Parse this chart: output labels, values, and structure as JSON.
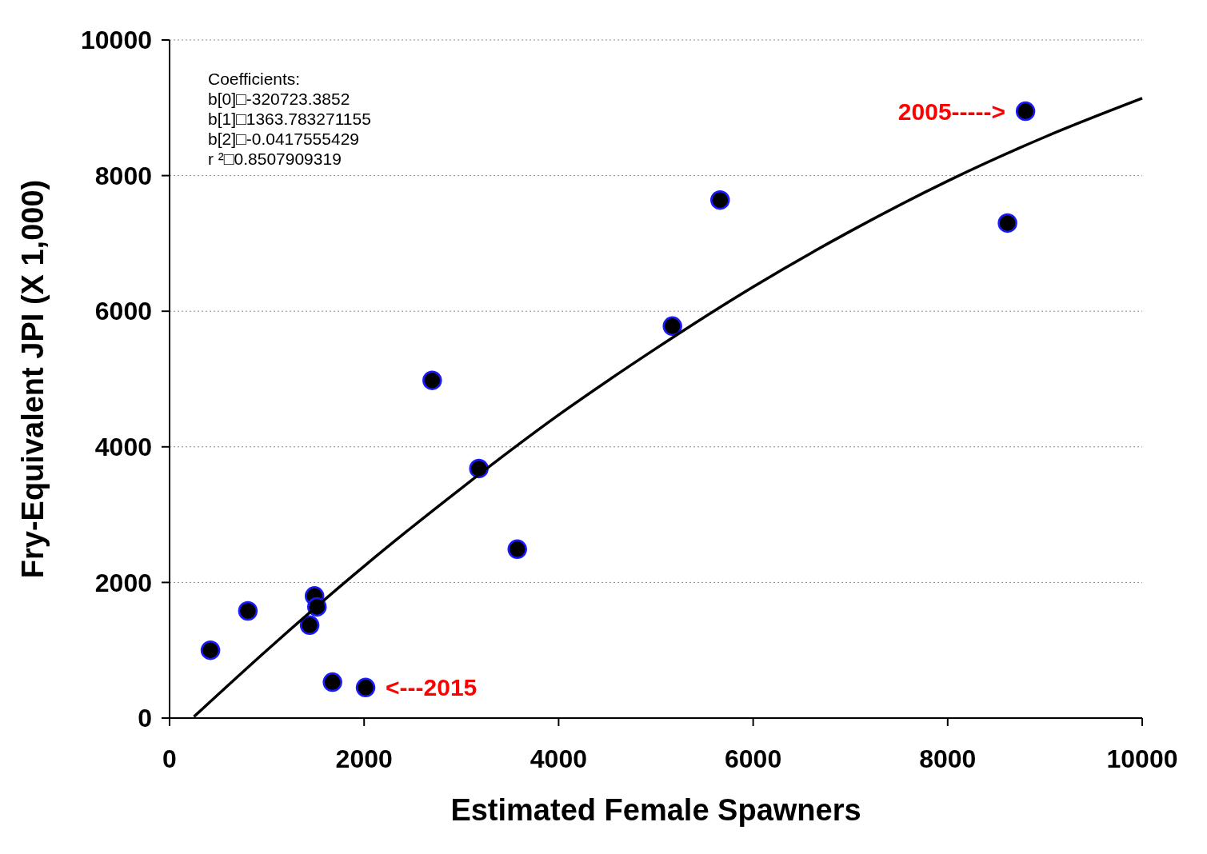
{
  "chart_data": {
    "type": "scatter",
    "xlabel": "Estimated Female Spawners",
    "ylabel": "Fry-Equivalent JPI (X 1,000)",
    "xlim": [
      0,
      10000
    ],
    "xticks": [
      0,
      2000,
      4000,
      6000,
      8000,
      10000
    ],
    "ylim": [
      0,
      10000
    ],
    "yticks": [
      0,
      2000,
      4000,
      6000,
      8000,
      10000
    ],
    "grid": "y",
    "marker": "circle",
    "series": [
      {
        "color": "#000000",
        "x": [
          420,
          805,
          1440,
          1490,
          1515,
          1675,
          2015,
          2700,
          3180,
          3575,
          5170,
          5660,
          8615,
          8800
        ],
        "values": [
          1000,
          1580,
          1370,
          1800,
          1640,
          530,
          450,
          4980,
          3680,
          2490,
          5780,
          7640,
          7300,
          8950
        ]
      },
      {
        "type": "line",
        "color": "#000000",
        "marker": "none",
        "line_style": "solid",
        "x": [
          250,
          1000,
          2000,
          3000,
          4000,
          5000,
          6000,
          7000,
          8000,
          9000,
          10000
        ],
        "values": [
          20,
          1000,
          2240,
          3390,
          4470,
          5450,
          6360,
          7180,
          7920,
          8570,
          9140
        ]
      }
    ],
    "annotations": [
      "Coefficients:",
      "b[0]□-320723.3852",
      "b[1]□1363.783271155",
      "b[2]□-0.0417555429",
      "r ²□0.8507909319",
      {
        "text": "2005----->",
        "x": 8800,
        "y": 8950
      },
      {
        "text": "<---2015",
        "x": 2015,
        "y": 450
      }
    ]
  }
}
